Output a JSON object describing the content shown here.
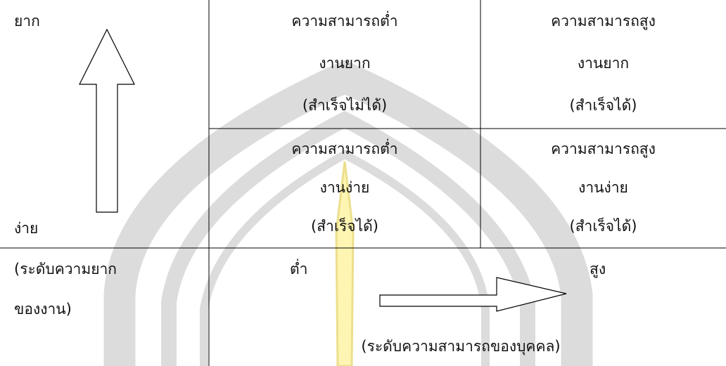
{
  "table": {
    "rows": [
      {
        "level": "ยาก",
        "low": [
          "ความสามารถต่ำ",
          "งานยาก",
          "(สำเร็จไม่ได้)"
        ],
        "high": [
          "ความสามารถสูง",
          "งานยาก",
          "(สำเร็จได้)"
        ]
      },
      {
        "level": "ง่าย",
        "low": [
          "ความสามารถต่ำ",
          "งานง่าย",
          "(สำเร็จได้)"
        ],
        "high": [
          "ความสามารถสูง",
          "งานง่าย",
          "(สำเร็จได้)"
        ]
      },
      {
        "y_axis_label": [
          "(ระดับความยาก",
          "ของงาน)"
        ],
        "low": "ต่ำ",
        "high": "สูง",
        "x_axis_label": "(ระดับความสามารถของบุคคล)"
      }
    ]
  }
}
